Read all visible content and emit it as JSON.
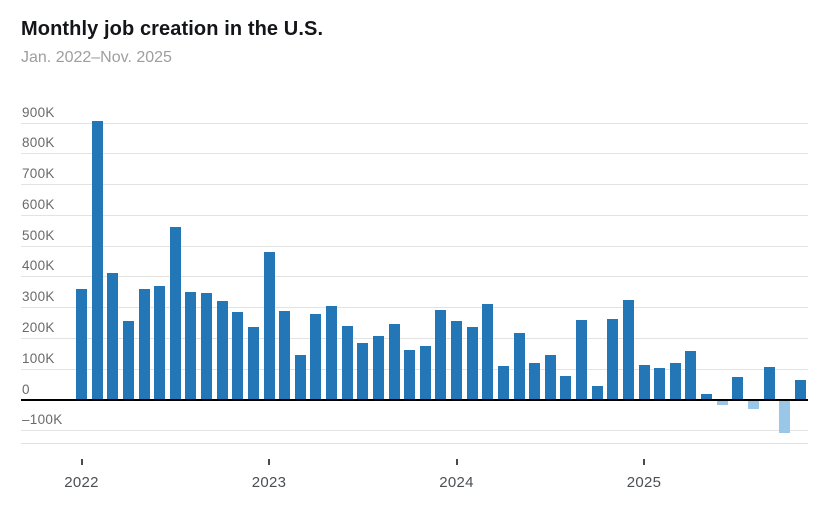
{
  "header": {
    "title": "Monthly job creation in the U.S.",
    "subtitle": "Jan. 2022–Nov. 2025"
  },
  "colors": {
    "bar_positive": "#2377b6",
    "bar_negative": "#9ac6e8",
    "gridline": "#e3e3e3",
    "zero_line": "#000000",
    "y_label": "#6a6a6a",
    "year_label": "#4b5055",
    "title": "#131519",
    "subtitle": "#9e9e9e"
  },
  "chart_data": {
    "type": "bar",
    "title": "Monthly job creation in the U.S.",
    "subtitle": "Jan. 2022–Nov. 2025",
    "unit": "jobs (thousands)",
    "xlabel": "",
    "ylabel": "",
    "ylim": [
      -140,
      940
    ],
    "grid": true,
    "legend": false,
    "x": [
      "Jan 2022",
      "Feb 2022",
      "Mar 2022",
      "Apr 2022",
      "May 2022",
      "Jun 2022",
      "Jul 2022",
      "Aug 2022",
      "Sep 2022",
      "Oct 2022",
      "Nov 2022",
      "Dec 2022",
      "Jan 2023",
      "Feb 2023",
      "Mar 2023",
      "Apr 2023",
      "May 2023",
      "Jun 2023",
      "Jul 2023",
      "Aug 2023",
      "Sep 2023",
      "Oct 2023",
      "Nov 2023",
      "Dec 2023",
      "Jan 2024",
      "Feb 2024",
      "Mar 2024",
      "Apr 2024",
      "May 2024",
      "Jun 2024",
      "Jul 2024",
      "Aug 2024",
      "Sep 2024",
      "Oct 2024",
      "Nov 2024",
      "Dec 2024",
      "Jan 2025",
      "Feb 2025",
      "Mar 2025",
      "Apr 2025",
      "May 2025",
      "Jun 2025",
      "Jul 2025",
      "Aug 2025",
      "Sep 2025",
      "Oct 2025",
      "Nov 2025"
    ],
    "values": [
      360,
      904,
      410,
      254,
      360,
      368,
      560,
      350,
      345,
      320,
      285,
      235,
      478,
      287,
      146,
      278,
      303,
      240,
      184,
      208,
      245,
      162,
      175,
      290,
      256,
      236,
      310,
      110,
      216,
      120,
      145,
      78,
      260,
      44,
      262,
      323,
      111,
      102,
      120,
      158,
      19,
      -13,
      72,
      -26,
      105,
      -105,
      64
    ],
    "values_unit_note": "thousands; negative months (Jun 2025, Aug 2025, Oct 2025) drawn in light blue",
    "y_ticks": [
      {
        "label": "900K",
        "value": 900
      },
      {
        "label": "800K",
        "value": 800
      },
      {
        "label": "700K",
        "value": 700
      },
      {
        "label": "600K",
        "value": 600
      },
      {
        "label": "500K",
        "value": 500
      },
      {
        "label": "400K",
        "value": 400
      },
      {
        "label": "300K",
        "value": 300
      },
      {
        "label": "200K",
        "value": 200
      },
      {
        "label": "100K",
        "value": 100
      },
      {
        "label": "0",
        "value": 0
      },
      {
        "label": "–100K",
        "value": -100
      }
    ],
    "x_ticks": [
      {
        "label": "2022",
        "month_index": 0
      },
      {
        "label": "2023",
        "month_index": 12
      },
      {
        "label": "2024",
        "month_index": 24
      },
      {
        "label": "2025",
        "month_index": 36
      }
    ]
  }
}
